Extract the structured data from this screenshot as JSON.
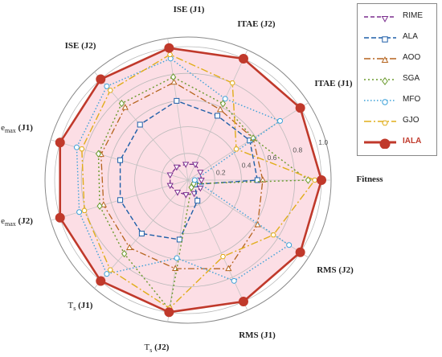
{
  "chart_data": {
    "type": "radar",
    "axes": [
      "Fitness",
      "ITAE (J1)",
      "ITAE (J2)",
      "ISE (J1)",
      "ISE (J2)",
      "emax (J1)",
      "emax (J2)",
      "Ts (J1)",
      "Ts (J2)",
      "RMS (J1)",
      "RMS (J2)"
    ],
    "radial_ticks": [
      "0.2",
      "0.4",
      "0.6",
      "0.8",
      "1.0"
    ],
    "rlim": [
      0,
      1.0
    ],
    "grid": true,
    "legend_position": "top-right",
    "series": [
      {
        "name": "RIME",
        "color": "#7b2d8e",
        "marker": "triangle-down",
        "dash": "5,3",
        "width": 1.3,
        "values": [
          0.1,
          0.11,
          0.13,
          0.12,
          0.13,
          0.14,
          0.14,
          0.12,
          0.11,
          0.11,
          0.11
        ]
      },
      {
        "name": "ALA",
        "color": "#1f5fa8",
        "marker": "square",
        "dash": "6,3",
        "width": 1.4,
        "values": [
          0.52,
          0.55,
          0.53,
          0.6,
          0.55,
          0.53,
          0.53,
          0.53,
          0.45,
          0.17,
          0.06
        ]
      },
      {
        "name": "AOO",
        "color": "#b5641e",
        "marker": "triangle-up",
        "dash": "8,3,2,3",
        "width": 1.3,
        "values": [
          0.56,
          0.58,
          0.58,
          0.74,
          0.72,
          0.68,
          0.66,
          0.67,
          0.67,
          0.73,
          0.62
        ]
      },
      {
        "name": "SGA",
        "color": "#6a9a2c",
        "marker": "diamond",
        "dash": "2,3",
        "width": 1.4,
        "values": [
          0.9,
          0.58,
          0.63,
          0.78,
          0.76,
          0.7,
          0.69,
          0.73,
          0.98,
          0.06,
          0.05
        ]
      },
      {
        "name": "MFO",
        "color": "#3aa0d8",
        "marker": "circle",
        "dash": "1.5,2.5",
        "width": 1.4,
        "values": [
          0.05,
          0.82,
          0.67,
          0.92,
          0.93,
          0.87,
          0.85,
          0.93,
          0.59,
          0.83,
          0.9
        ]
      },
      {
        "name": "GJO",
        "color": "#e0ad1a",
        "marker": "hexagon",
        "dash": "9,3,2,3",
        "width": 1.4,
        "values": [
          0.95,
          0.43,
          0.8,
          0.95,
          0.89,
          0.83,
          0.81,
          0.89,
          0.97,
          0.63,
          0.76
        ]
      },
      {
        "name": "IALA",
        "color": "#c0392b",
        "marker": "circle",
        "dash": "",
        "width": 2.6,
        "values": [
          1.0,
          1.0,
          1.0,
          1.0,
          1.0,
          1.0,
          1.0,
          1.0,
          1.0,
          1.0,
          1.0
        ]
      }
    ]
  }
}
